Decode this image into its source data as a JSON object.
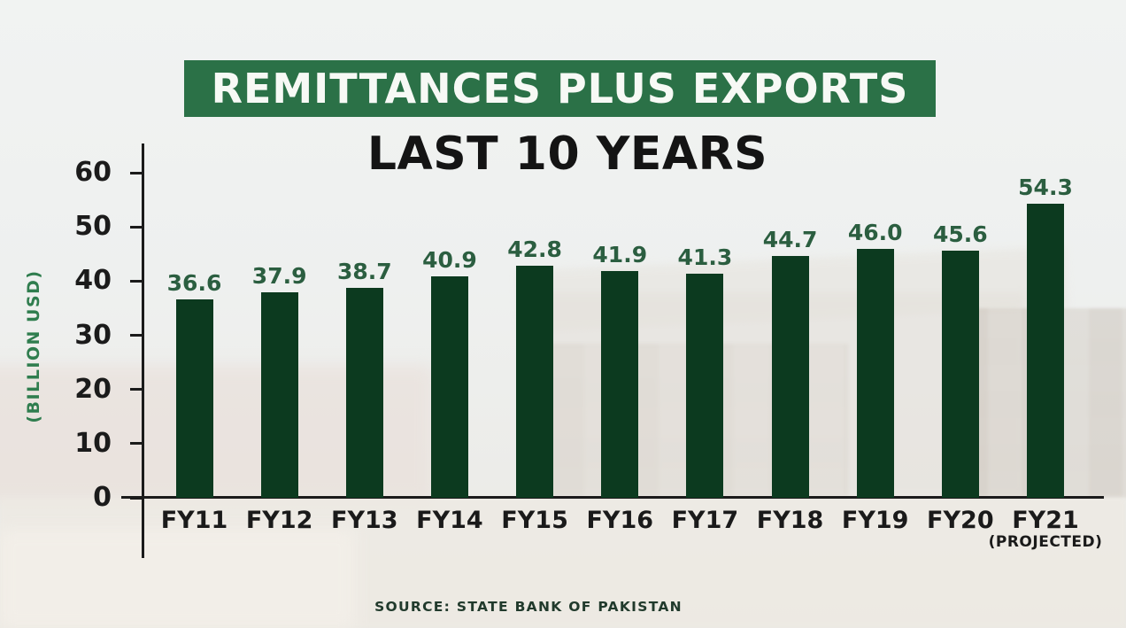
{
  "header": {
    "title": "REMITTANCES PLUS EXPORTS",
    "subtitle": "LAST 10 YEARS"
  },
  "footer": {
    "source": "SOURCE: STATE BANK OF PAKISTAN"
  },
  "chart_data": {
    "type": "bar",
    "title": "REMITTANCES PLUS EXPORTS",
    "subtitle": "LAST 10 YEARS",
    "categories": [
      "FY11",
      "FY12",
      "FY13",
      "FY14",
      "FY15",
      "FY16",
      "FY17",
      "FY18",
      "FY19",
      "FY20",
      "FY21"
    ],
    "category_notes": [
      "",
      "",
      "",
      "",
      "",
      "",
      "",
      "",
      "",
      "",
      "(PROJECTED)"
    ],
    "values": [
      36.6,
      37.9,
      38.7,
      40.9,
      42.8,
      41.9,
      41.3,
      44.7,
      46.0,
      45.6,
      54.3
    ],
    "value_labels": [
      "36.6",
      "37.9",
      "38.7",
      "40.9",
      "42.8",
      "41.9",
      "41.3",
      "44.7",
      "46.0",
      "45.6",
      "54.3"
    ],
    "ylabel": "(BILLION USD)",
    "yticks": [
      0,
      10,
      20,
      30,
      40,
      50,
      60
    ],
    "ylim": [
      0,
      60
    ],
    "grid": false,
    "legend": false,
    "bar_color": "#0c3a1f",
    "source": "SOURCE: STATE BANK OF PAKISTAN"
  },
  "colors": {
    "background": "#eef0ef",
    "title_band": "#2b7147",
    "title_text": "#f7f9f5",
    "subtitle_text": "#141414",
    "bar": "#0c3a1f",
    "value_label": "#2b5e40",
    "axis": "#1b1b1b",
    "tick_label": "#1b1b1b",
    "y_axis_label": "#2f7d4e",
    "source_text": "#213a2c"
  }
}
